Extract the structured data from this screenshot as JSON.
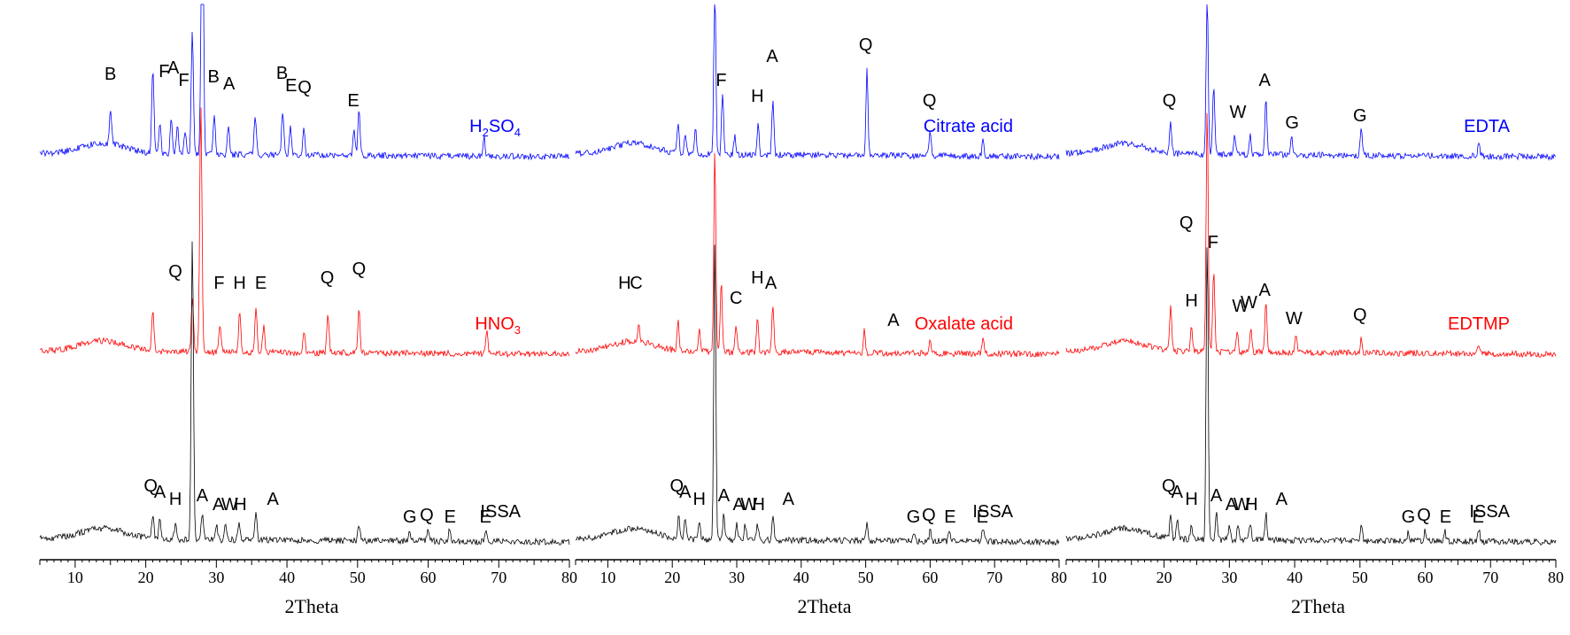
{
  "chart_data": [
    {
      "type": "line",
      "xlabel": "2Theta",
      "xlim": [
        5,
        80
      ],
      "xticks": [
        10,
        20,
        30,
        40,
        50,
        60,
        70,
        80
      ],
      "series": [
        {
          "name": "H2SO4",
          "color": "#0000ff",
          "peaks": [
            [
              15.0,
              40
            ],
            [
              21.0,
              95
            ],
            [
              22.0,
              35
            ],
            [
              23.6,
              38
            ],
            [
              24.5,
              30
            ],
            [
              25.6,
              28
            ],
            [
              26.6,
              140
            ],
            [
              28.0,
              420
            ],
            [
              29.7,
              45
            ],
            [
              31.7,
              35
            ],
            [
              35.5,
              45
            ],
            [
              39.4,
              50
            ],
            [
              40.5,
              30
            ],
            [
              42.4,
              28
            ],
            [
              49.5,
              28
            ],
            [
              50.2,
              50
            ],
            [
              67.9,
              22
            ]
          ],
          "annotations": [
            {
              "t": "B",
              "x": 15.0,
              "y": 85
            },
            {
              "t": "F",
              "x": 22.6,
              "y": 88
            },
            {
              "t": "A",
              "x": 23.9,
              "y": 92
            },
            {
              "t": "F",
              "x": 25.4,
              "y": 78
            },
            {
              "t": "B",
              "x": 29.6,
              "y": 82
            },
            {
              "t": "A",
              "x": 31.8,
              "y": 74
            },
            {
              "t": "B",
              "x": 39.3,
              "y": 86
            },
            {
              "t": "E",
              "x": 40.6,
              "y": 72
            },
            {
              "t": "Q",
              "x": 42.5,
              "y": 70
            },
            {
              "t": "E",
              "x": 49.4,
              "y": 55
            }
          ],
          "label_parts": [
            "H",
            "2",
            "SO",
            "4"
          ]
        },
        {
          "name": "HNO3",
          "color": "#ff0000",
          "peaks": [
            [
              21.0,
              45
            ],
            [
              26.6,
              60
            ],
            [
              27.8,
              280
            ],
            [
              30.5,
              30
            ],
            [
              33.3,
              45
            ],
            [
              35.6,
              50
            ],
            [
              36.7,
              30
            ],
            [
              42.4,
              25
            ],
            [
              45.8,
              45
            ],
            [
              50.2,
              50
            ],
            [
              68.3,
              28
            ]
          ],
          "annotations": [
            {
              "t": "Q",
              "x": 24.2,
              "y": 85
            },
            {
              "t": "F",
              "x": 30.4,
              "y": 72
            },
            {
              "t": "H",
              "x": 33.3,
              "y": 72
            },
            {
              "t": "E",
              "x": 36.3,
              "y": 72
            },
            {
              "t": "Q",
              "x": 45.7,
              "y": 78
            },
            {
              "t": "Q",
              "x": 50.2,
              "y": 88
            }
          ],
          "label_parts": [
            "HNO",
            "3"
          ]
        },
        {
          "name": "ISSA",
          "color": "#000000",
          "peaks": [
            [
              21.0,
              25
            ],
            [
              22.0,
              22
            ],
            [
              24.2,
              18
            ],
            [
              26.6,
              340
            ],
            [
              28.0,
              30
            ],
            [
              30.0,
              18
            ],
            [
              31.3,
              18
            ],
            [
              33.2,
              20
            ],
            [
              35.6,
              30
            ],
            [
              50.2,
              18
            ],
            [
              57.4,
              10
            ],
            [
              60.0,
              12
            ],
            [
              63.0,
              12
            ],
            [
              68.2,
              15
            ]
          ],
          "annotations": [
            {
              "t": "Q",
              "x": 20.7,
              "y": 55
            },
            {
              "t": "A",
              "x": 22.0,
              "y": 48
            },
            {
              "t": "H",
              "x": 24.2,
              "y": 40
            },
            {
              "t": "A",
              "x": 28.0,
              "y": 44
            },
            {
              "t": "A",
              "x": 30.3,
              "y": 34
            },
            {
              "t": "W",
              "x": 31.9,
              "y": 34
            },
            {
              "t": "H",
              "x": 33.4,
              "y": 34
            },
            {
              "t": "A",
              "x": 38.0,
              "y": 40
            },
            {
              "t": "G",
              "x": 57.4,
              "y": 20
            },
            {
              "t": "Q",
              "x": 59.8,
              "y": 22
            },
            {
              "t": "E",
              "x": 63.1,
              "y": 20
            },
            {
              "t": "E",
              "x": 68.1,
              "y": 20
            }
          ],
          "label": "ISSA"
        }
      ]
    },
    {
      "type": "line",
      "xlabel": "2Theta",
      "xlim": [
        5,
        80
      ],
      "xticks": [
        10,
        20,
        30,
        40,
        50,
        60,
        70,
        80
      ],
      "series": [
        {
          "name": "Citrate acid",
          "color": "#0000ff",
          "peaks": [
            [
              20.9,
              35
            ],
            [
              22.0,
              25
            ],
            [
              23.6,
              30
            ],
            [
              26.6,
              200
            ],
            [
              27.8,
              70
            ],
            [
              29.7,
              22
            ],
            [
              33.3,
              35
            ],
            [
              35.6,
              65
            ],
            [
              50.2,
              100
            ],
            [
              60.0,
              28
            ],
            [
              68.2,
              18
            ]
          ],
          "annotations": [
            {
              "t": "F",
              "x": 27.6,
              "y": 78
            },
            {
              "t": "H",
              "x": 33.2,
              "y": 60
            },
            {
              "t": "A",
              "x": 35.5,
              "y": 105
            },
            {
              "t": "Q",
              "x": 50.0,
              "y": 118
            },
            {
              "t": "Q",
              "x": 59.9,
              "y": 55
            }
          ],
          "label": "Citrate acid"
        },
        {
          "name": "Oxalate acid",
          "color": "#ff0000",
          "peaks": [
            [
              14.8,
              20
            ],
            [
              20.9,
              35
            ],
            [
              24.2,
              30
            ],
            [
              26.6,
              230
            ],
            [
              27.6,
              80
            ],
            [
              29.9,
              28
            ],
            [
              33.2,
              40
            ],
            [
              35.6,
              55
            ],
            [
              49.8,
              25
            ],
            [
              60.0,
              18
            ],
            [
              68.2,
              18
            ]
          ],
          "annotations": [
            {
              "t": "H",
              "x": 12.6,
              "y": 72
            },
            {
              "t": "C",
              "x": 14.4,
              "y": 72
            },
            {
              "t": "C",
              "x": 29.9,
              "y": 55
            },
            {
              "t": "H",
              "x": 33.2,
              "y": 78
            },
            {
              "t": "A",
              "x": 35.3,
              "y": 72
            },
            {
              "t": "A",
              "x": 54.3,
              "y": 30
            }
          ],
          "label": "Oxalate acid"
        },
        {
          "name": "ISSA",
          "color": "#000000",
          "peaks": [
            [
              21.0,
              25
            ],
            [
              22.0,
              22
            ],
            [
              24.2,
              18
            ],
            [
              26.6,
              340
            ],
            [
              28.0,
              30
            ],
            [
              30.0,
              18
            ],
            [
              31.3,
              18
            ],
            [
              33.2,
              20
            ],
            [
              35.6,
              30
            ],
            [
              50.2,
              18
            ],
            [
              57.4,
              10
            ],
            [
              60.0,
              12
            ],
            [
              63.0,
              12
            ],
            [
              68.2,
              15
            ]
          ],
          "annotations": [
            {
              "t": "Q",
              "x": 20.7,
              "y": 55
            },
            {
              "t": "A",
              "x": 22.0,
              "y": 48
            },
            {
              "t": "H",
              "x": 24.2,
              "y": 40
            },
            {
              "t": "A",
              "x": 28.0,
              "y": 44
            },
            {
              "t": "A",
              "x": 30.3,
              "y": 34
            },
            {
              "t": "W",
              "x": 31.9,
              "y": 34
            },
            {
              "t": "H",
              "x": 33.4,
              "y": 34
            },
            {
              "t": "A",
              "x": 38.0,
              "y": 40
            },
            {
              "t": "G",
              "x": 57.4,
              "y": 20
            },
            {
              "t": "Q",
              "x": 59.8,
              "y": 22
            },
            {
              "t": "E",
              "x": 63.1,
              "y": 20
            },
            {
              "t": "E",
              "x": 68.1,
              "y": 20
            }
          ],
          "label": "ISSA"
        }
      ]
    },
    {
      "type": "line",
      "xlabel": "2Theta",
      "xlim": [
        5,
        80
      ],
      "xticks": [
        10,
        20,
        30,
        40,
        50,
        60,
        70,
        80
      ],
      "series": [
        {
          "name": "EDTA",
          "color": "#0000ff",
          "peaks": [
            [
              21.0,
              35
            ],
            [
              26.6,
              180
            ],
            [
              27.6,
              80
            ],
            [
              30.8,
              22
            ],
            [
              33.2,
              22
            ],
            [
              35.6,
              65
            ],
            [
              39.5,
              22
            ],
            [
              50.2,
              30
            ],
            [
              68.2,
              18
            ]
          ],
          "annotations": [
            {
              "t": "Q",
              "x": 20.8,
              "y": 55
            },
            {
              "t": "W",
              "x": 31.3,
              "y": 42
            },
            {
              "t": "A",
              "x": 35.4,
              "y": 78
            },
            {
              "t": "G",
              "x": 39.6,
              "y": 30
            },
            {
              "t": "G",
              "x": 50.0,
              "y": 38
            }
          ],
          "label": "EDTA"
        },
        {
          "name": "EDTMP",
          "color": "#ff0000",
          "peaks": [
            [
              21.0,
              50
            ],
            [
              24.2,
              30
            ],
            [
              26.6,
              280
            ],
            [
              27.6,
              95
            ],
            [
              31.2,
              25
            ],
            [
              33.3,
              28
            ],
            [
              35.6,
              60
            ],
            [
              40.2,
              18
            ],
            [
              50.2,
              18
            ],
            [
              68.2,
              12
            ]
          ],
          "annotations": [
            {
              "t": "Q",
              "x": 23.4,
              "y": 140
            },
            {
              "t": "F",
              "x": 27.5,
              "y": 118
            },
            {
              "t": "H",
              "x": 24.2,
              "y": 52
            },
            {
              "t": "W",
              "x": 31.7,
              "y": 46
            },
            {
              "t": "W",
              "x": 33.0,
              "y": 50
            },
            {
              "t": "A",
              "x": 35.4,
              "y": 64
            },
            {
              "t": "W",
              "x": 39.9,
              "y": 32
            },
            {
              "t": "Q",
              "x": 50.0,
              "y": 36
            }
          ],
          "label": "EDTMP"
        },
        {
          "name": "ISSA",
          "color": "#000000",
          "peaks": [
            [
              21.0,
              25
            ],
            [
              22.0,
              22
            ],
            [
              24.2,
              18
            ],
            [
              26.6,
              340
            ],
            [
              28.0,
              30
            ],
            [
              30.0,
              18
            ],
            [
              31.3,
              18
            ],
            [
              33.2,
              20
            ],
            [
              35.6,
              30
            ],
            [
              50.2,
              18
            ],
            [
              57.4,
              10
            ],
            [
              60.0,
              12
            ],
            [
              63.0,
              12
            ],
            [
              68.2,
              15
            ]
          ],
          "annotations": [
            {
              "t": "Q",
              "x": 20.7,
              "y": 55
            },
            {
              "t": "A",
              "x": 22.0,
              "y": 48
            },
            {
              "t": "H",
              "x": 24.2,
              "y": 40
            },
            {
              "t": "A",
              "x": 28.0,
              "y": 44
            },
            {
              "t": "A",
              "x": 30.3,
              "y": 34
            },
            {
              "t": "W",
              "x": 31.9,
              "y": 34
            },
            {
              "t": "H",
              "x": 33.4,
              "y": 34
            },
            {
              "t": "A",
              "x": 38.0,
              "y": 40
            },
            {
              "t": "G",
              "x": 57.4,
              "y": 20
            },
            {
              "t": "Q",
              "x": 59.8,
              "y": 22
            },
            {
              "t": "E",
              "x": 63.1,
              "y": 20
            },
            {
              "t": "E",
              "x": 68.1,
              "y": 20
            }
          ],
          "label": "ISSA"
        }
      ]
    }
  ]
}
